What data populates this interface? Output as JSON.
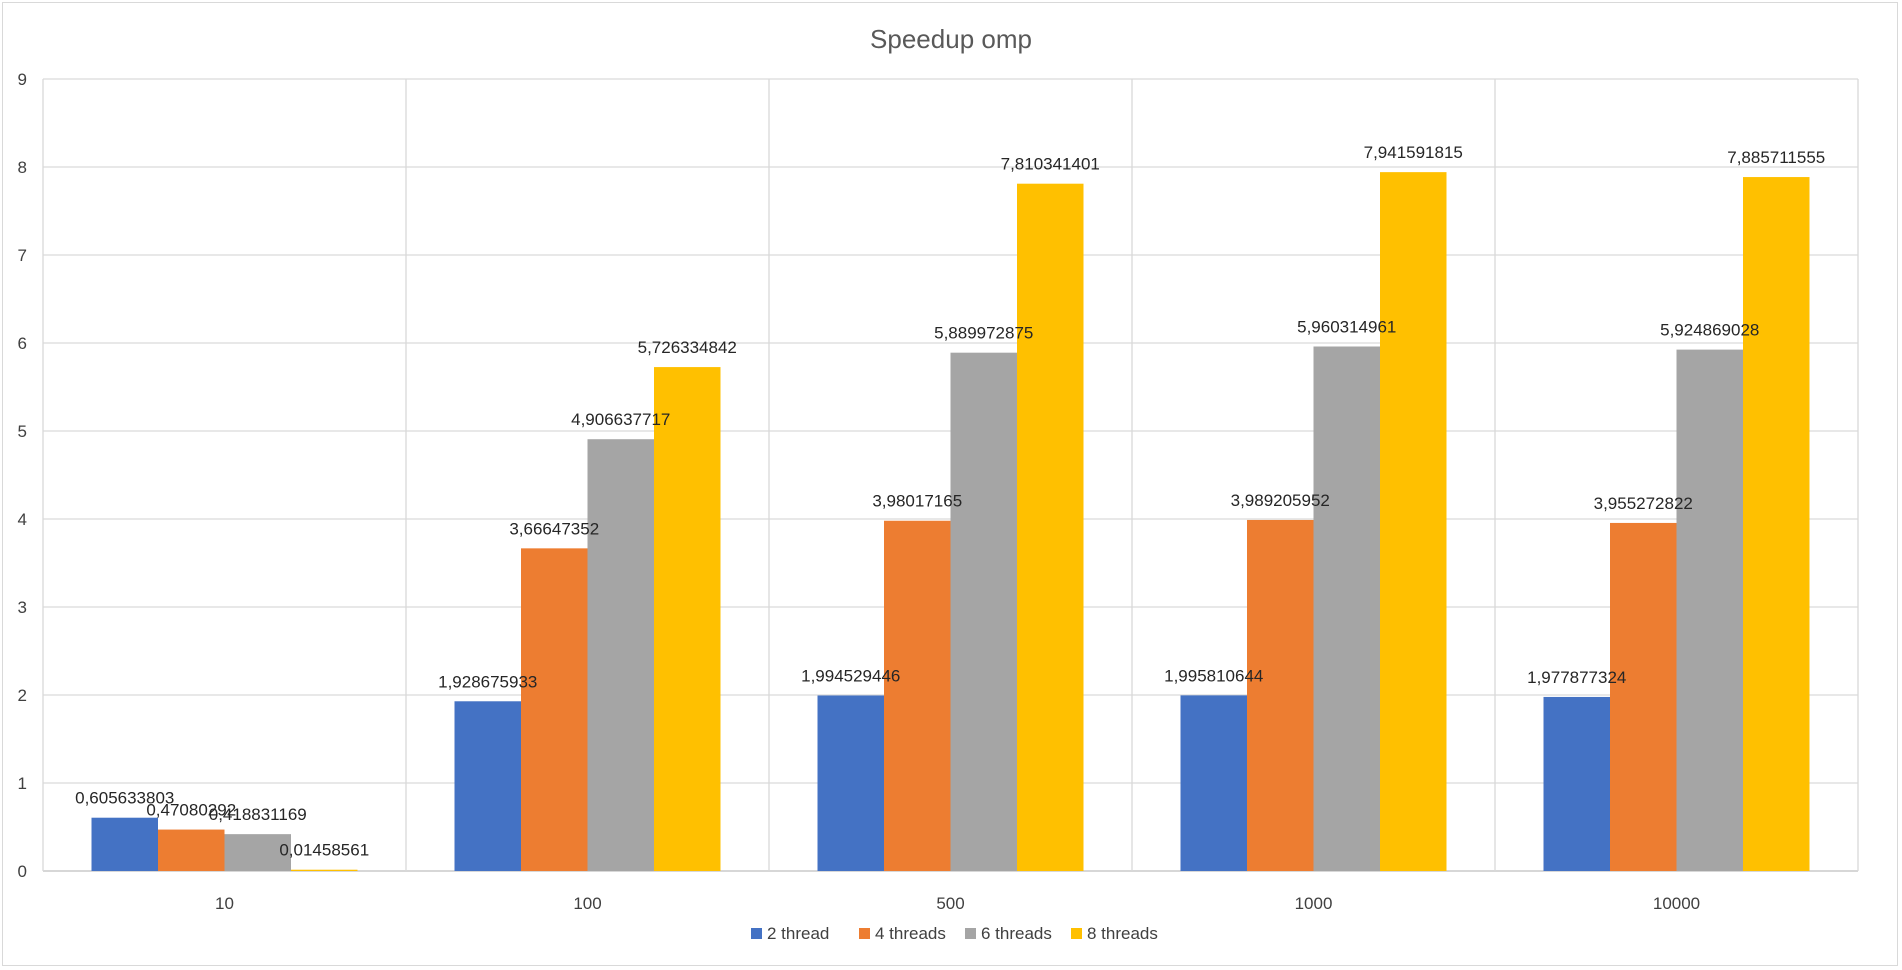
{
  "chart_data": {
    "type": "bar",
    "title": "Speedup omp",
    "xlabel": "",
    "ylabel": "",
    "ylim": [
      0,
      9
    ],
    "yticks": [
      0,
      1,
      2,
      3,
      4,
      5,
      6,
      7,
      8,
      9
    ],
    "grid": true,
    "legend_position": "bottom",
    "categories": [
      "10",
      "100",
      "500",
      "1000",
      "10000"
    ],
    "series": [
      {
        "name": "2 thread",
        "color": "#4472C4",
        "values": [
          0.605633803,
          1.928675933,
          1.994529446,
          1.995810644,
          1.977877324
        ],
        "labels": [
          "0,605633803",
          "1,928675933",
          "1,994529446",
          "1,995810644",
          "1,977877324"
        ]
      },
      {
        "name": "4 threads",
        "color": "#ED7D31",
        "values": [
          0.47080292,
          3.66647352,
          3.98017165,
          3.989205952,
          3.955272822
        ],
        "labels": [
          "0,47080292",
          "3,66647352",
          "3,98017165",
          "3,989205952",
          "3,955272822"
        ]
      },
      {
        "name": "6 threads",
        "color": "#A5A5A5",
        "values": [
          0.418831169,
          4.906637717,
          5.889972875,
          5.960314961,
          5.924869028
        ],
        "labels": [
          "0,418831169",
          "4,906637717",
          "5,889972875",
          "5,960314961",
          "5,924869028"
        ]
      },
      {
        "name": "8 threads",
        "color": "#FFC000",
        "values": [
          0.01458561,
          5.726334842,
          7.810341401,
          7.941591815,
          7.885711555
        ],
        "labels": [
          "0,01458561",
          "5,726334842",
          "7,810341401",
          "7,941591815",
          "7,885711555"
        ]
      }
    ]
  }
}
